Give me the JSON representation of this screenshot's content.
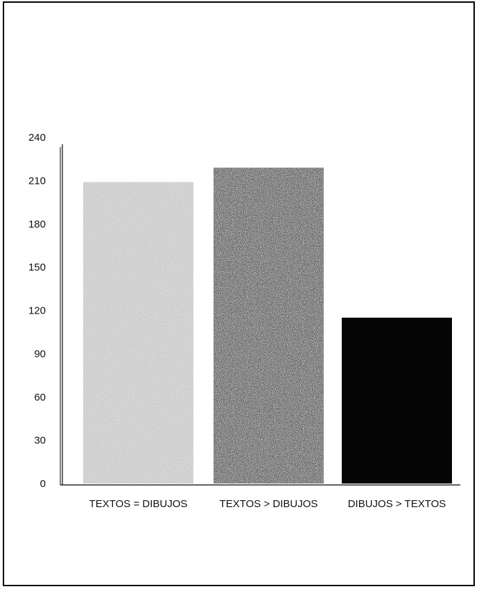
{
  "chart_data": {
    "type": "bar",
    "title": "",
    "xlabel": "",
    "ylabel": "",
    "categories": [
      "TEXTOS = DIBUJOS",
      "TEXTOS > DIBUJOS",
      "DIBUJOS > TEXTOS"
    ],
    "values": [
      209,
      219,
      115
    ],
    "ylim": [
      0,
      240
    ],
    "yticks": [
      0,
      30,
      60,
      90,
      120,
      150,
      180,
      210,
      240
    ],
    "grid": false,
    "legend": "none",
    "bar_fills": [
      "#d9d9d9",
      "#6e6e6e",
      "#050505"
    ],
    "bar_textures": [
      "light-stipple",
      "dark-stipple",
      "solid-black"
    ]
  }
}
